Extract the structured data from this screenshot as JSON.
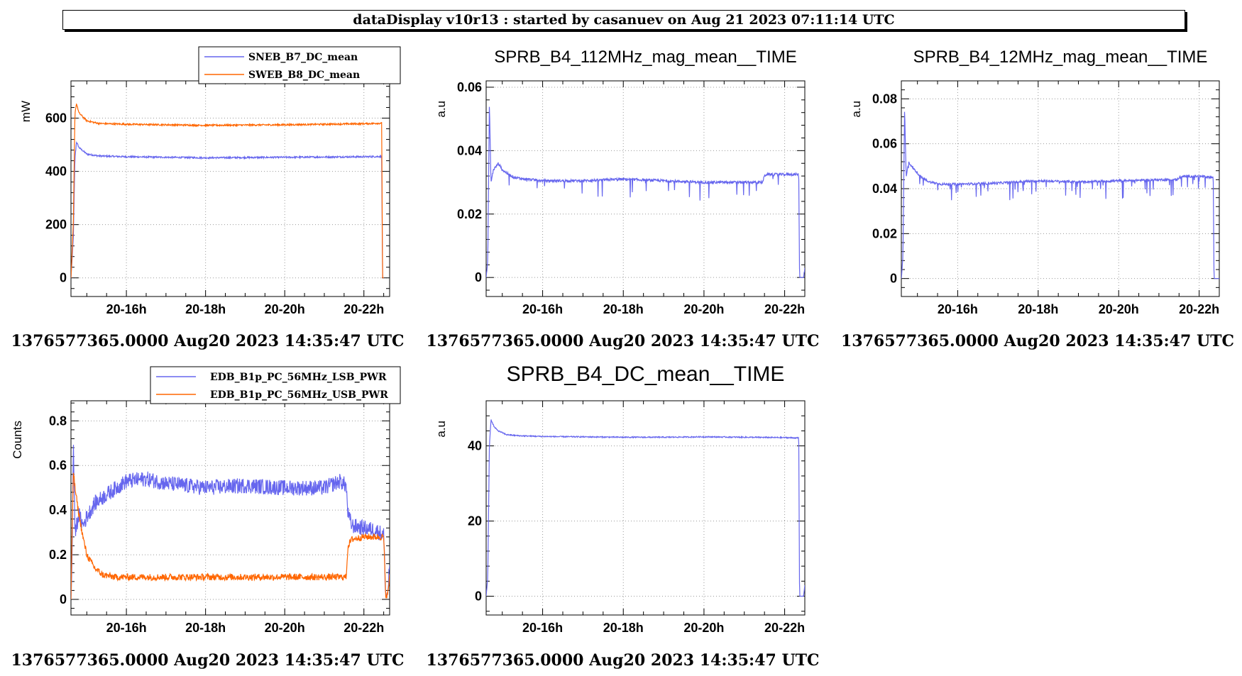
{
  "banner": {
    "title": "dataDisplay v10r13 : started by casanuev on Aug 21 2023 07:11:14 UTC"
  },
  "colors": {
    "blue": "#6666ee",
    "orange": "#ff6600",
    "grid": "#9a9a9a",
    "axis": "#000000"
  },
  "chart_data": [
    {
      "type": "line",
      "title": "",
      "ylabel": "mW",
      "xlabel": "",
      "stamp": "1376577365.0000 Aug20 2023 14:35:47 UTC",
      "x_ticks": [
        "20-16h",
        "20-18h",
        "20-20h",
        "20-22h"
      ],
      "x_tick_hours": [
        16,
        18,
        20,
        22
      ],
      "xlim_hours": [
        14.6,
        22.65
      ],
      "ylim": [
        -70,
        740
      ],
      "y_ticks": [
        0,
        200,
        400,
        600
      ],
      "y_tick_labels": [
        "0",
        "200",
        "400",
        "600"
      ],
      "grid": true,
      "legend": {
        "position": "top-right",
        "entries": [
          {
            "name": "SNEB_B7_DC_mean",
            "color": "#6666ee"
          },
          {
            "name": "SWEB_B8_DC_mean",
            "color": "#ff6600"
          }
        ]
      },
      "series": [
        {
          "name": "SNEB_B7_DC_mean",
          "color": "#6666ee",
          "x_hours": [
            14.6,
            14.66,
            14.7,
            14.74,
            14.8,
            15.0,
            15.3,
            16,
            17,
            18,
            19,
            20,
            21,
            22,
            22.45,
            22.47,
            22.5
          ],
          "y": [
            0,
            150,
            450,
            510,
            490,
            465,
            458,
            455,
            453,
            451,
            452,
            453,
            454,
            455,
            456,
            0,
            0
          ],
          "noise": 3
        },
        {
          "name": "SWEB_B8_DC_mean",
          "color": "#ff6600",
          "x_hours": [
            14.6,
            14.66,
            14.7,
            14.74,
            14.8,
            15.0,
            15.3,
            16,
            17,
            18,
            19,
            20,
            21,
            22,
            22.45,
            22.47,
            22.5
          ],
          "y": [
            0,
            200,
            620,
            655,
            620,
            590,
            580,
            577,
            575,
            573,
            574,
            575,
            577,
            579,
            581,
            0,
            0
          ],
          "noise": 3
        }
      ]
    },
    {
      "type": "line",
      "title": "SPRB_B4_112MHz_mag_mean__TIME",
      "ylabel": "a.u",
      "xlabel": "",
      "stamp": "1376577365.0000 Aug20 2023 14:35:47 UTC",
      "x_ticks": [
        "20-16h",
        "20-18h",
        "20-20h",
        "20-22h"
      ],
      "x_tick_hours": [
        16,
        18,
        20,
        22
      ],
      "xlim_hours": [
        14.6,
        22.5
      ],
      "ylim": [
        -0.006,
        0.062
      ],
      "y_ticks": [
        0,
        0.02,
        0.04,
        0.06
      ],
      "y_tick_labels": [
        "0",
        "0.02",
        "0.04",
        "0.06"
      ],
      "grid": true,
      "legend": null,
      "series": [
        {
          "name": "",
          "color": "#6666ee",
          "x_hours": [
            14.6,
            14.64,
            14.68,
            14.72,
            14.78,
            14.85,
            14.9,
            15.0,
            15.1,
            15.3,
            15.6,
            16,
            17,
            18,
            19,
            20,
            21,
            21.45,
            21.5,
            21.55,
            22,
            22.35,
            22.37,
            22.47,
            22.5
          ],
          "y": [
            0,
            0.005,
            0.055,
            0.03,
            0.034,
            0.035,
            0.036,
            0.034,
            0.033,
            0.0315,
            0.031,
            0.0305,
            0.0305,
            0.031,
            0.0305,
            0.03,
            0.03,
            0.03,
            0.032,
            0.0325,
            0.0325,
            0.0325,
            0,
            0,
            0.003
          ],
          "noise": 0.0004,
          "spikes": -0.006
        }
      ]
    },
    {
      "type": "line",
      "title": "SPRB_B4_12MHz_mag_mean__TIME",
      "ylabel": "a.u",
      "xlabel": "",
      "stamp": "1376577365.0000 Aug20 2023 14:35:47 UTC",
      "x_ticks": [
        "20-16h",
        "20-18h",
        "20-20h",
        "20-22h"
      ],
      "x_tick_hours": [
        16,
        18,
        20,
        22
      ],
      "xlim_hours": [
        14.6,
        22.5
      ],
      "ylim": [
        -0.008,
        0.088
      ],
      "y_ticks": [
        0,
        0.02,
        0.04,
        0.06,
        0.08
      ],
      "y_tick_labels": [
        "0",
        "0.02",
        "0.04",
        "0.06",
        "0.08"
      ],
      "grid": true,
      "legend": null,
      "series": [
        {
          "name": "",
          "color": "#6666ee",
          "x_hours": [
            14.6,
            14.64,
            14.68,
            14.72,
            14.78,
            14.85,
            14.95,
            15.1,
            15.3,
            15.6,
            16,
            17,
            18,
            19,
            20,
            21,
            21.45,
            21.5,
            21.55,
            22,
            22.35,
            22.37,
            22.5
          ],
          "y": [
            0,
            0.01,
            0.076,
            0.045,
            0.052,
            0.05,
            0.048,
            0.045,
            0.043,
            0.042,
            0.042,
            0.0425,
            0.0435,
            0.043,
            0.0435,
            0.044,
            0.044,
            0.045,
            0.0455,
            0.0455,
            0.045,
            0,
            0
          ],
          "noise": 0.0005,
          "spikes": -0.008
        }
      ]
    },
    {
      "type": "line",
      "title": "",
      "ylabel": "Counts",
      "xlabel": "",
      "stamp": "1376577365.0000 Aug20 2023 14:35:47 UTC",
      "x_ticks": [
        "20-16h",
        "20-18h",
        "20-20h",
        "20-22h"
      ],
      "x_tick_hours": [
        16,
        18,
        20,
        22
      ],
      "xlim_hours": [
        14.6,
        22.65
      ],
      "ylim": [
        -0.07,
        0.89
      ],
      "y_ticks": [
        0,
        0.2,
        0.4,
        0.6,
        0.8
      ],
      "y_tick_labels": [
        "0",
        "0.2",
        "0.4",
        "0.6",
        "0.8"
      ],
      "grid": true,
      "legend": {
        "position": "top-right",
        "entries": [
          {
            "name": "EDB_B1p_PC_56MHz_LSB_PWR",
            "color": "#6666ee"
          },
          {
            "name": "EDB_B1p_PC_56MHz_USB_PWR",
            "color": "#ff6600"
          }
        ]
      },
      "series": [
        {
          "name": "EDB_B1p_PC_56MHz_LSB_PWR",
          "color": "#6666ee",
          "x_hours": [
            14.6,
            14.63,
            14.66,
            14.7,
            14.8,
            14.9,
            15.0,
            15.2,
            15.5,
            16,
            16.5,
            17,
            18,
            19,
            20,
            21,
            21.4,
            21.55,
            21.6,
            21.7,
            22,
            22.3,
            22.5,
            22.55,
            22.6,
            22.65
          ],
          "y": [
            0,
            0.2,
            0.72,
            0.3,
            0.38,
            0.33,
            0.37,
            0.43,
            0.47,
            0.53,
            0.54,
            0.52,
            0.5,
            0.51,
            0.5,
            0.5,
            0.53,
            0.51,
            0.38,
            0.33,
            0.32,
            0.31,
            0.29,
            0.02,
            0.02,
            0.16
          ],
          "noise": 0.035
        },
        {
          "name": "EDB_B1p_PC_56MHz_USB_PWR",
          "color": "#ff6600",
          "x_hours": [
            14.6,
            14.63,
            14.66,
            14.7,
            14.8,
            14.9,
            15.0,
            15.2,
            15.4,
            15.7,
            16,
            17,
            18,
            19,
            20,
            21,
            21.5,
            21.55,
            21.6,
            21.7,
            22,
            22.3,
            22.5,
            22.55,
            22.6,
            22.65
          ],
          "y": [
            0,
            0.3,
            0.58,
            0.5,
            0.38,
            0.28,
            0.2,
            0.14,
            0.11,
            0.1,
            0.1,
            0.1,
            0.1,
            0.1,
            0.1,
            0.1,
            0.1,
            0.1,
            0.24,
            0.27,
            0.28,
            0.28,
            0.28,
            0.02,
            0.02,
            0.1
          ],
          "noise": 0.015
        }
      ]
    },
    {
      "type": "line",
      "title": "SPRB_B4_DC_mean__TIME",
      "ylabel": "a.u",
      "xlabel": "",
      "stamp": "1376577365.0000 Aug20 2023 14:35:47 UTC",
      "x_ticks": [
        "20-16h",
        "20-18h",
        "20-20h",
        "20-22h"
      ],
      "x_tick_hours": [
        16,
        18,
        20,
        22
      ],
      "xlim_hours": [
        14.6,
        22.5
      ],
      "ylim": [
        -5,
        52
      ],
      "y_ticks": [
        0,
        20,
        40
      ],
      "y_tick_labels": [
        "0",
        "20",
        "40"
      ],
      "grid": true,
      "legend": null,
      "series": [
        {
          "name": "",
          "color": "#6666ee",
          "x_hours": [
            14.6,
            14.64,
            14.68,
            14.72,
            14.8,
            14.9,
            15.1,
            15.4,
            16,
            17,
            18,
            19,
            20,
            21,
            22,
            22.35,
            22.37,
            22.47,
            22.5
          ],
          "y": [
            0,
            5,
            40,
            47,
            45,
            44,
            43,
            42.7,
            42.5,
            42.4,
            42.3,
            42.3,
            42.4,
            42.3,
            42.2,
            42.1,
            0,
            0,
            3
          ],
          "noise": 0.15
        }
      ]
    }
  ]
}
